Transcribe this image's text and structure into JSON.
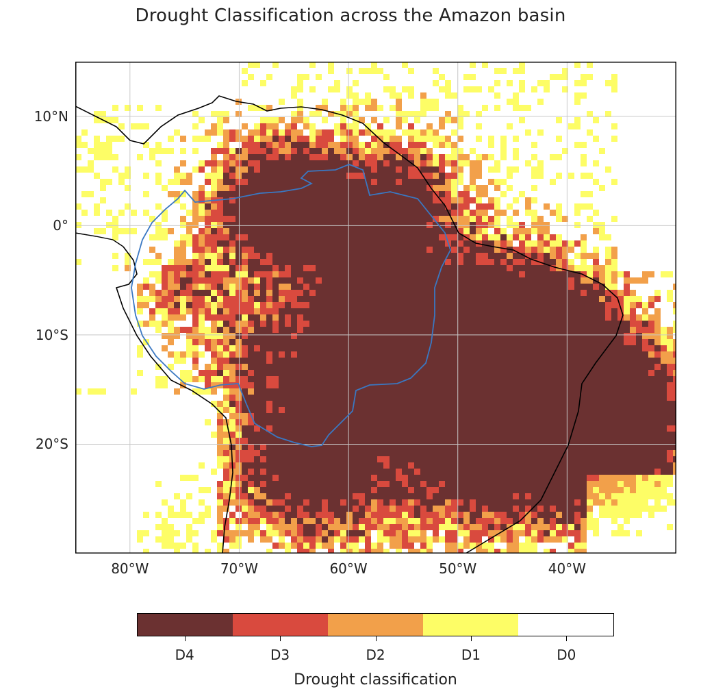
{
  "title": "Drought Classification across the Amazon basin",
  "map": {
    "lon_range": [
      -85,
      -30
    ],
    "lat_range": [
      -30,
      15
    ],
    "lat_ticks": [
      {
        "value": 10,
        "label": "10°N"
      },
      {
        "value": 0,
        "label": "0°"
      },
      {
        "value": -10,
        "label": "10°S"
      },
      {
        "value": -20,
        "label": "20°S"
      }
    ],
    "lon_ticks": [
      {
        "value": -80,
        "label": "80°W"
      },
      {
        "value": -70,
        "label": "70°W"
      },
      {
        "value": -60,
        "label": "60°W"
      },
      {
        "value": -50,
        "label": "50°W"
      },
      {
        "value": -40,
        "label": "40°W"
      }
    ],
    "gridlines": true,
    "layers": [
      "drought classification raster",
      "coastlines",
      "Amazon basin boundary"
    ],
    "basin_outline_color": "#3a78c2",
    "coastline_color": "#000000"
  },
  "colorbar": {
    "title": "Drought classification",
    "classes": [
      {
        "label": "D4",
        "color": "#6b3131"
      },
      {
        "label": "D3",
        "color": "#d94a3e"
      },
      {
        "label": "D2",
        "color": "#f2a04a"
      },
      {
        "label": "D1",
        "color": "#fdfd66"
      },
      {
        "label": "D0",
        "color": "#ffffff"
      }
    ]
  }
}
